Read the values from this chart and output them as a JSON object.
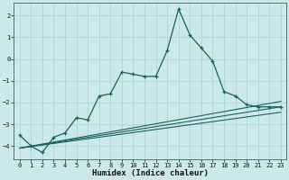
{
  "xlabel": "Humidex (Indice chaleur)",
  "ylabel": "",
  "background_color": "#cce9e9",
  "grid_color": "#afd4d4",
  "line_color": "#1a6060",
  "xlim": [
    -0.5,
    23.5
  ],
  "ylim": [
    -4.6,
    2.6
  ],
  "yticks": [
    -4,
    -3,
    -2,
    -1,
    0,
    1,
    2
  ],
  "xticks": [
    0,
    1,
    2,
    3,
    4,
    5,
    6,
    7,
    8,
    9,
    10,
    11,
    12,
    13,
    14,
    15,
    16,
    17,
    18,
    19,
    20,
    21,
    22,
    23
  ],
  "main_line_x": [
    0,
    1,
    2,
    3,
    4,
    5,
    6,
    7,
    8,
    9,
    10,
    11,
    12,
    13,
    14,
    15,
    16,
    17,
    18,
    19,
    20,
    21,
    22,
    23
  ],
  "main_line_y": [
    -3.5,
    -4.0,
    -4.3,
    -3.6,
    -3.4,
    -2.7,
    -2.8,
    -1.7,
    -1.6,
    -0.6,
    -0.7,
    -0.8,
    -0.8,
    0.4,
    2.3,
    1.1,
    0.5,
    -0.1,
    -1.5,
    -1.7,
    -2.1,
    -2.2,
    -2.2,
    -2.2
  ],
  "line2_x": [
    0,
    23
  ],
  "line2_y": [
    -4.1,
    -1.95
  ],
  "line3_x": [
    0,
    23
  ],
  "line3_y": [
    -4.1,
    -2.2
  ],
  "line4_x": [
    0,
    23
  ],
  "line4_y": [
    -4.1,
    -2.45
  ]
}
